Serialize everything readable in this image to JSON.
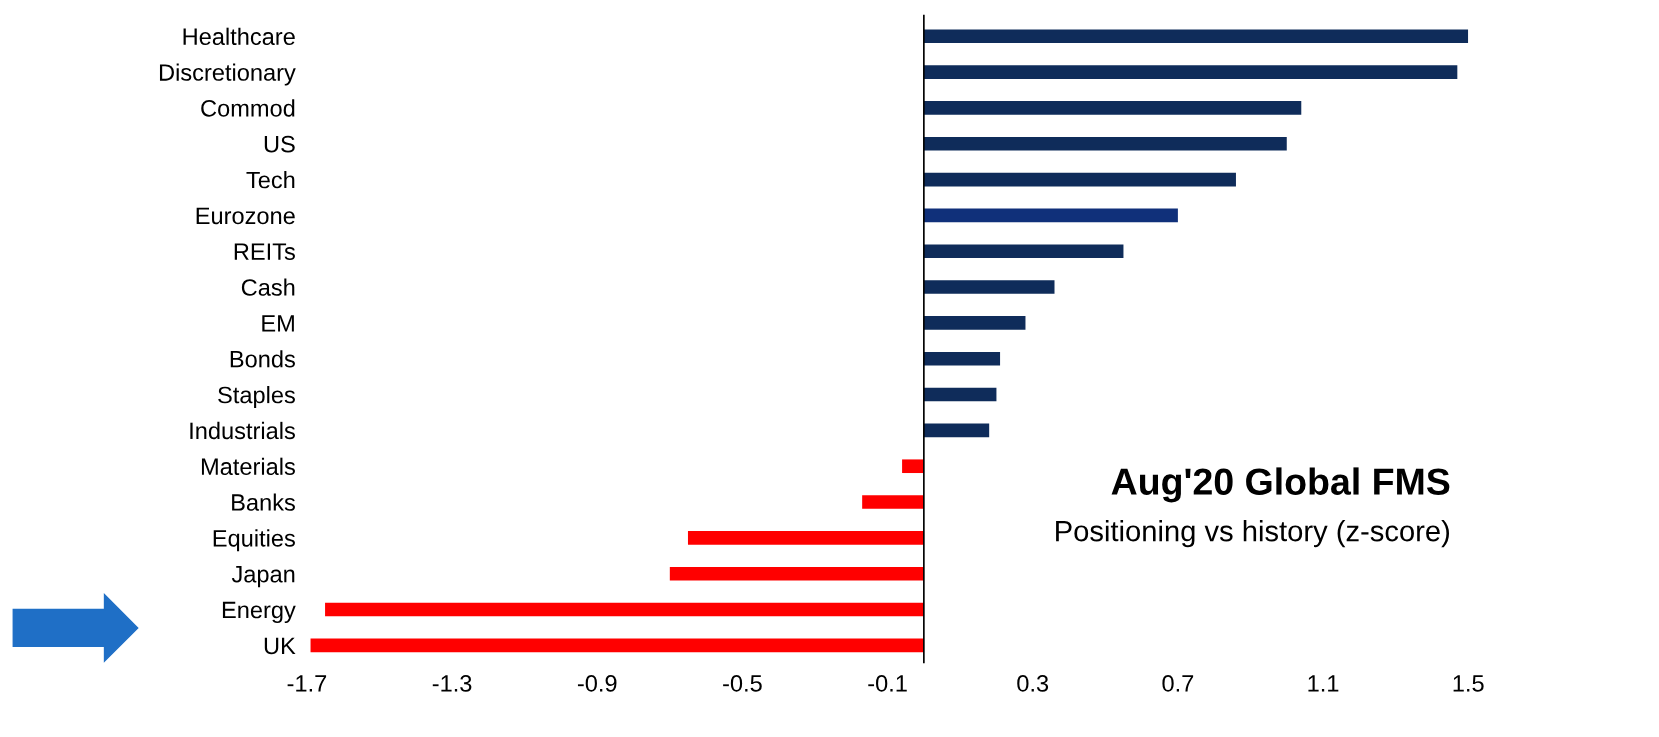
{
  "chart_data": {
    "type": "bar",
    "orientation": "horizontal",
    "categories": [
      "Healthcare",
      "Discretionary",
      "Commod",
      "US",
      "Tech",
      "Eurozone",
      "REITs",
      "Cash",
      "EM",
      "Bonds",
      "Staples",
      "Industrials",
      "Materials",
      "Banks",
      "Equities",
      "Japan",
      "Energy",
      "UK"
    ],
    "values": [
      1.5,
      1.47,
      1.04,
      1.0,
      0.86,
      0.7,
      0.55,
      0.36,
      0.28,
      0.21,
      0.2,
      0.18,
      -0.06,
      -0.17,
      -0.65,
      -0.7,
      -1.65,
      -1.69
    ],
    "colors": [
      "#0f2c5a",
      "#0f2c5a",
      "#0f2c5a",
      "#0f2c5a",
      "#0f2c5a",
      "#10307a",
      "#0f2c5a",
      "#0f2c5a",
      "#0f2c5a",
      "#0f2c5a",
      "#0f2c5a",
      "#0f2c5a",
      "#ff0000",
      "#ff0000",
      "#ff0000",
      "#ff0000",
      "#ff0000",
      "#ff0000"
    ],
    "xlim": [
      -1.7,
      1.5
    ],
    "xticks": [
      -1.7,
      -1.3,
      -0.9,
      -0.5,
      -0.1,
      0.3,
      0.7,
      1.1,
      1.5
    ],
    "title": "Aug'20 Global FMS",
    "subtitle": "Positioning vs history (z-score)",
    "grid": false
  }
}
